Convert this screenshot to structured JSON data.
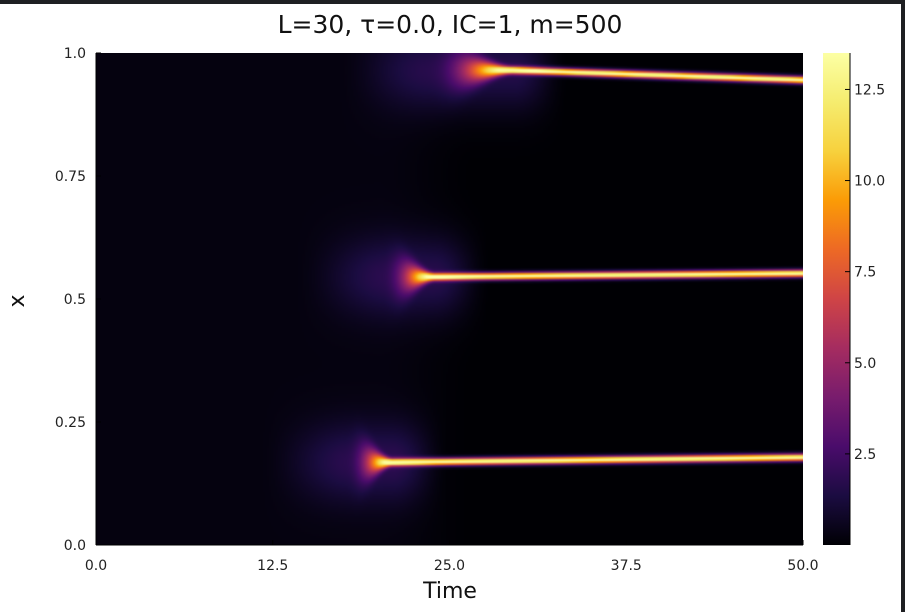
{
  "chart_data": {
    "type": "heatmap",
    "title": "L=30, τ=0.0, IC=1, m=500",
    "xlabel": "Time",
    "ylabel": "x",
    "xlim": [
      0,
      50
    ],
    "ylim": [
      0,
      1
    ],
    "xticks": [
      "0.0",
      "12.5",
      "25.0",
      "37.5",
      "50.0"
    ],
    "yticks": [
      "0.0",
      "0.25",
      "0.5",
      "0.75",
      "1.0"
    ],
    "colorbar": {
      "range": [
        0,
        13.5
      ],
      "ticks": [
        "2.5",
        "5.0",
        "7.5",
        "10.0",
        "12.5"
      ],
      "colormap": "inferno"
    },
    "bands": [
      {
        "t_start": 17.5,
        "t_sharp": 21.0,
        "x_start": 0.168,
        "x_end": 0.178,
        "peak": 13.5
      },
      {
        "t_start": 20.0,
        "t_sharp": 24.0,
        "x_start": 0.545,
        "x_end": 0.552,
        "peak": 13.5
      },
      {
        "t_start": 23.0,
        "t_sharp": 29.5,
        "x_start": 0.965,
        "x_end": 0.945,
        "peak": 13.5
      }
    ],
    "background_level": 0.25,
    "grid": false
  }
}
